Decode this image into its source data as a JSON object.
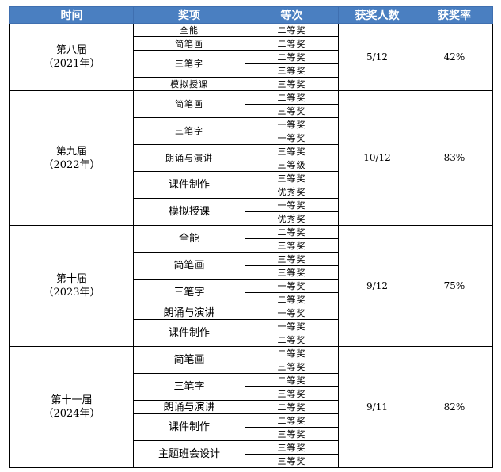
{
  "header": {
    "bg_color": "#4a7fc1",
    "time": "时间",
    "award": "奖项",
    "level": "等次",
    "winners": "获奖人数",
    "rate": "获奖率"
  },
  "terms": [
    {
      "name": "第八届",
      "year": "（2021年）",
      "winners": "5/12",
      "rate": "42%",
      "small_font": true,
      "awards": [
        {
          "name": "全能",
          "levels": [
            "二等奖"
          ]
        },
        {
          "name": "简笔画",
          "levels": [
            "二等奖"
          ]
        },
        {
          "name": "三笔字",
          "levels": [
            "二等奖",
            "三等奖"
          ]
        },
        {
          "name": "模拟授课",
          "levels": [
            "三等奖"
          ]
        }
      ]
    },
    {
      "name": "第九届",
      "year": "（2022年）",
      "winners": "10/12",
      "rate": "83%",
      "awards": [
        {
          "name": "简笔画",
          "levels": [
            "二等奖",
            "三等奖"
          ],
          "small_font": true
        },
        {
          "name": "三笔字",
          "levels": [
            "一等奖",
            "一等奖"
          ],
          "small_font": true
        },
        {
          "name": "朗诵与演讲",
          "levels": [
            "三等奖",
            "三等级"
          ],
          "small_font": true
        },
        {
          "name": "课件制作",
          "levels": [
            "三等奖",
            "优秀奖"
          ]
        },
        {
          "name": "模拟授课",
          "levels": [
            "一等奖",
            "优秀奖"
          ]
        }
      ]
    },
    {
      "name": "第十届",
      "year": "（2023年）",
      "winners": "9/12",
      "rate": "75%",
      "awards": [
        {
          "name": "全能",
          "levels": [
            "二等奖",
            "三等奖"
          ]
        },
        {
          "name": "简笔画",
          "levels": [
            "三等奖",
            "三等奖"
          ]
        },
        {
          "name": "三笔字",
          "levels": [
            "一等奖",
            "二等奖"
          ]
        },
        {
          "name": "朗诵与演讲",
          "levels": [
            "一等奖"
          ]
        },
        {
          "name": "课件制作",
          "levels": [
            "一等奖",
            "二等奖"
          ]
        }
      ]
    },
    {
      "name": "第十一届",
      "year": "（2024年）",
      "winners": "9/11",
      "rate": "82%",
      "awards": [
        {
          "name": "简笔画",
          "levels": [
            "二等奖",
            "三等奖"
          ]
        },
        {
          "name": "三笔字",
          "levels": [
            "二等奖",
            "三等奖"
          ]
        },
        {
          "name": "朗诵与演讲",
          "levels": [
            "二等奖"
          ]
        },
        {
          "name": "课件制作",
          "levels": [
            "二等奖",
            "三等奖"
          ]
        },
        {
          "name": "主题班会设计",
          "levels": [
            "三等奖",
            "三等奖"
          ]
        }
      ]
    }
  ]
}
